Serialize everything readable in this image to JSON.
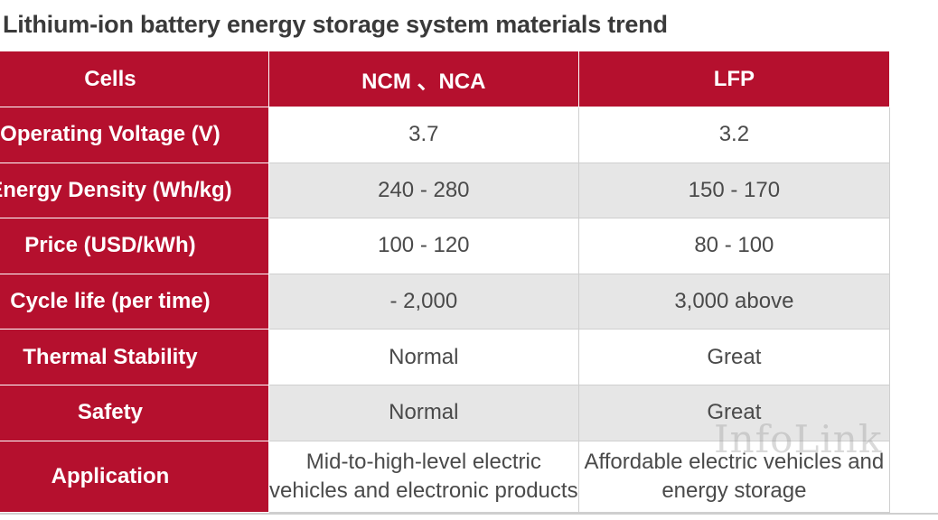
{
  "title": "Lithium-ion battery energy storage system materials trend",
  "table": {
    "headers": [
      "Cells",
      "NCM 、NCA",
      "LFP"
    ],
    "rows": [
      {
        "label": "Operating Voltage (V)",
        "ncm": "3.7",
        "lfp": "3.2"
      },
      {
        "label": "Energy Density (Wh/kg)",
        "ncm": "240 - 280",
        "lfp": "150 - 170"
      },
      {
        "label": "Price (USD/kWh)",
        "ncm": "100 - 120",
        "lfp": "80 - 100"
      },
      {
        "label": "Cycle life (per time)",
        "ncm": "- 2,000",
        "lfp": "3,000 above"
      },
      {
        "label": "Thermal Stability",
        "ncm": "Normal",
        "lfp": "Great"
      },
      {
        "label": "Safety",
        "ncm": "Normal",
        "lfp": "Great"
      },
      {
        "label": "Application",
        "ncm": "Mid-to-high-level electric vehicles and electronic products",
        "lfp": "Affordable electric vehicles and energy storage"
      }
    ]
  },
  "watermark": "InfoLink",
  "colors": {
    "header_bg": "#b5102e",
    "shade_row": "#e6e6e6",
    "text": "#4a4a4a"
  }
}
